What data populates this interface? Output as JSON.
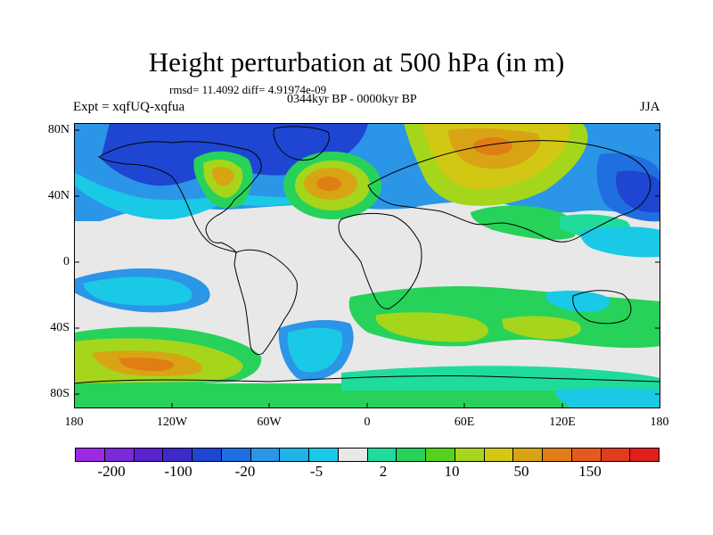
{
  "title": "Height perturbation at 500 hPa (in m)",
  "stats_line": "rmsd= 11.4092 diff= 4.91974e-09",
  "period_label": "0344kyr BP - 0000kyr BP",
  "experiment_label": "Expt = xqfUQ-xqfua",
  "season_label": "JJA",
  "map": {
    "projection": "cylindrical-equidistant",
    "lat_ticks": [
      "80N",
      "40N",
      "0",
      "40S",
      "80S"
    ],
    "lon_ticks": [
      "180",
      "120W",
      "60W",
      "0",
      "60E",
      "120E",
      "180"
    ]
  },
  "colorbar": {
    "colors": [
      "#9a2be2",
      "#7a2ad8",
      "#5a23cf",
      "#3c2bc8",
      "#1e46d2",
      "#1f6fe0",
      "#2b95e8",
      "#1fb3e6",
      "#19c9e6",
      "#e8e8e8",
      "#1fdc9a",
      "#27d25a",
      "#56d21e",
      "#a6d61c",
      "#d2c814",
      "#d8a414",
      "#df7e14",
      "#e45a1e",
      "#e03c1e",
      "#e01e1e"
    ],
    "labels": [
      "-200",
      "-100",
      "-20",
      "-5",
      "2",
      "10",
      "50",
      "150"
    ]
  },
  "palette": {
    "neutral": "#e8e8e8",
    "blue_deep": "#1e46d2",
    "blue_mid": "#1f6fe0",
    "blue_light": "#2b95e8",
    "cyan": "#19c9e6",
    "teal": "#1fdc9a",
    "green": "#27d25a",
    "yellowgreen": "#a6d61c",
    "yellow": "#d2c814",
    "orange": "#d8a414",
    "darkorange": "#df7e14"
  }
}
